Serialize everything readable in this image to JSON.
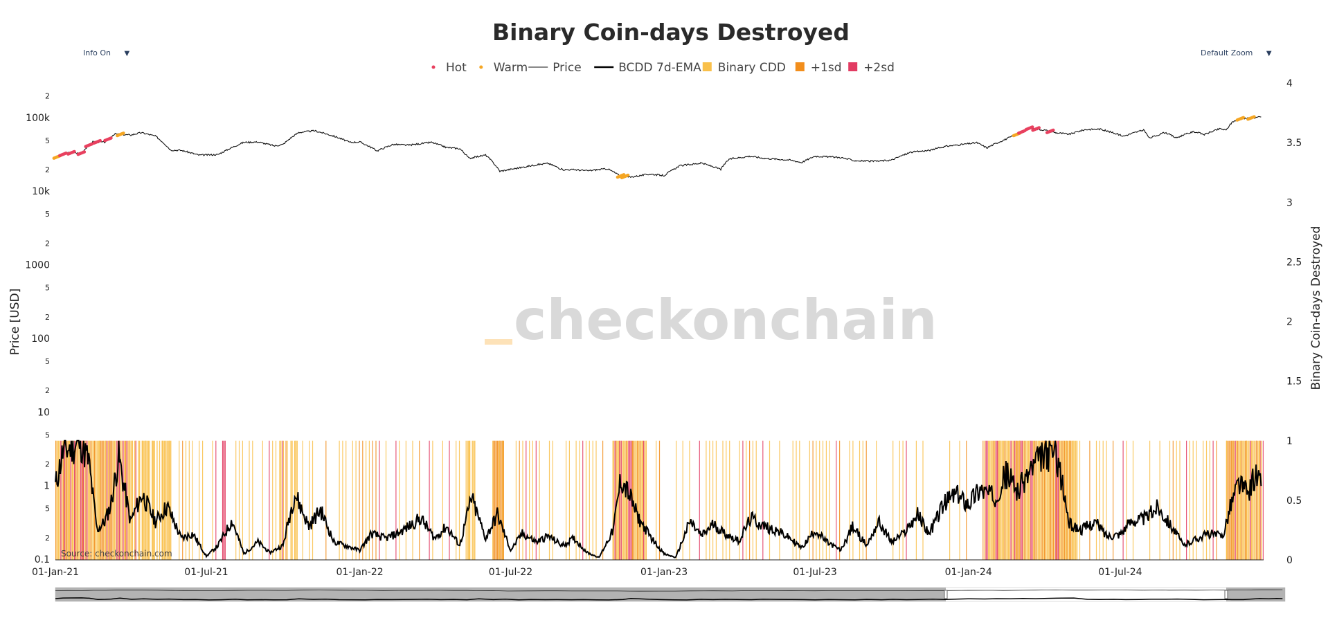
{
  "controls": {
    "info_toggle": "Info On",
    "zoom_select": "Default Zoom"
  },
  "watermark": "checkonchain",
  "source": "Source: checkonchain.com",
  "colors": {
    "hot": "#e8405f",
    "warm": "#f5a623",
    "binary_cdd": "#f9c04a",
    "sd1": "#f28e1c",
    "sd2": "#e23b62",
    "price": "#111111",
    "ema": "#000000"
  },
  "chart_data": {
    "type": "line",
    "title": "Binary Coin-days Destroyed",
    "legend": [
      {
        "label": "Hot",
        "kind": "marker",
        "color": "#e8405f"
      },
      {
        "label": "Warm",
        "kind": "marker",
        "color": "#f5a623"
      },
      {
        "label": "Price",
        "kind": "line-thin",
        "color": "#111111"
      },
      {
        "label": "BCDD 7d-EMA",
        "kind": "line-thick",
        "color": "#000000"
      },
      {
        "label": "Binary CDD",
        "kind": "box",
        "color": "#f9c04a"
      },
      {
        "label": "+1sd",
        "kind": "box",
        "color": "#f28e1c"
      },
      {
        "label": "+2sd",
        "kind": "box",
        "color": "#e23b62"
      }
    ],
    "legend_position": "top-center",
    "y_left": {
      "label": "Price [USD]",
      "scale": "log",
      "range": [
        0.1,
        300000
      ],
      "tick_labels": [
        {
          "v": 0.1,
          "t": "0.1"
        },
        {
          "v": 0.2,
          "t": "2"
        },
        {
          "v": 0.5,
          "t": "5"
        },
        {
          "v": 1,
          "t": "1"
        },
        {
          "v": 2,
          "t": "2"
        },
        {
          "v": 5,
          "t": "5"
        },
        {
          "v": 10,
          "t": "10"
        },
        {
          "v": 20,
          "t": "2"
        },
        {
          "v": 50,
          "t": "5"
        },
        {
          "v": 100,
          "t": "100"
        },
        {
          "v": 200,
          "t": "2"
        },
        {
          "v": 500,
          "t": "5"
        },
        {
          "v": 1000,
          "t": "1000"
        },
        {
          "v": 2000,
          "t": "2"
        },
        {
          "v": 5000,
          "t": "5"
        },
        {
          "v": 10000,
          "t": "10k"
        },
        {
          "v": 20000,
          "t": "2"
        },
        {
          "v": 50000,
          "t": "5"
        },
        {
          "v": 100000,
          "t": "100k"
        },
        {
          "v": 200000,
          "t": "2"
        }
      ]
    },
    "y_right": {
      "label": "Binary Coin-days Destroyed",
      "range": [
        0,
        4
      ],
      "ticks": [
        {
          "v": 0,
          "t": "0"
        },
        {
          "v": 0.5,
          "t": "0.5"
        },
        {
          "v": 1,
          "t": "1"
        },
        {
          "v": 1.5,
          "t": "1.5"
        },
        {
          "v": 2,
          "t": "2"
        },
        {
          "v": 2.5,
          "t": "2.5"
        },
        {
          "v": 3,
          "t": "3"
        },
        {
          "v": 3.5,
          "t": "3.5"
        },
        {
          "v": 4,
          "t": "4"
        }
      ]
    },
    "x_axis": {
      "range": [
        "2021-01-01",
        "2024-12-20"
      ],
      "ticks": [
        {
          "v": "2021-01-01",
          "t": "01-Jan-21"
        },
        {
          "v": "2021-07-01",
          "t": "01-Jul-21"
        },
        {
          "v": "2022-01-01",
          "t": "01-Jan-22"
        },
        {
          "v": "2022-07-01",
          "t": "01-Jul-22"
        },
        {
          "v": "2023-01-01",
          "t": "01-Jan-23"
        },
        {
          "v": "2023-07-01",
          "t": "01-Jul-23"
        },
        {
          "v": "2024-01-01",
          "t": "01-Jan-24"
        },
        {
          "v": "2024-07-01",
          "t": "01-Jul-24"
        }
      ]
    },
    "price_series": {
      "name": "Price",
      "x": [
        "2021-01-01",
        "2021-01-15",
        "2021-02-01",
        "2021-02-15",
        "2021-03-01",
        "2021-03-13",
        "2021-04-01",
        "2021-04-14",
        "2021-05-01",
        "2021-05-19",
        "2021-06-01",
        "2021-06-22",
        "2021-07-15",
        "2021-08-01",
        "2021-08-15",
        "2021-09-01",
        "2021-09-21",
        "2021-10-01",
        "2021-10-20",
        "2021-11-08",
        "2021-12-01",
        "2021-12-20",
        "2022-01-01",
        "2022-01-22",
        "2022-02-10",
        "2022-03-01",
        "2022-03-28",
        "2022-04-15",
        "2022-05-01",
        "2022-05-12",
        "2022-06-01",
        "2022-06-18",
        "2022-07-15",
        "2022-08-01",
        "2022-08-15",
        "2022-09-01",
        "2022-09-15",
        "2022-10-01",
        "2022-10-25",
        "2022-11-09",
        "2022-11-21",
        "2022-12-15",
        "2023-01-01",
        "2023-01-20",
        "2023-02-15",
        "2023-03-10",
        "2023-03-20",
        "2023-04-14",
        "2023-05-01",
        "2023-06-01",
        "2023-06-15",
        "2023-07-01",
        "2023-08-01",
        "2023-08-17",
        "2023-09-11",
        "2023-10-01",
        "2023-10-24",
        "2023-11-15",
        "2023-12-05",
        "2024-01-01",
        "2024-01-11",
        "2024-01-23",
        "2024-02-15",
        "2024-03-01",
        "2024-03-14",
        "2024-04-01",
        "2024-04-15",
        "2024-05-01",
        "2024-05-20",
        "2024-06-07",
        "2024-07-05",
        "2024-07-29",
        "2024-08-05",
        "2024-08-24",
        "2024-09-06",
        "2024-09-27",
        "2024-10-10",
        "2024-10-29",
        "2024-11-05",
        "2024-11-13",
        "2024-11-22",
        "2024-12-05",
        "2024-12-17"
      ],
      "y": [
        29000,
        34000,
        33500,
        48000,
        47000,
        61000,
        59000,
        63500,
        57000,
        37000,
        36500,
        31500,
        32000,
        40000,
        47000,
        47500,
        42000,
        44000,
        64000,
        67500,
        57000,
        47000,
        47500,
        36000,
        44000,
        43000,
        47000,
        40000,
        38500,
        28500,
        31500,
        19000,
        21500,
        23300,
        24300,
        20000,
        20000,
        19300,
        20600,
        16500,
        15800,
        17400,
        16600,
        22600,
        24500,
        20200,
        27800,
        30400,
        28500,
        27000,
        25000,
        30500,
        29200,
        26500,
        25900,
        27000,
        34500,
        36500,
        41500,
        45000,
        46500,
        39500,
        52000,
        61500,
        73000,
        69000,
        63500,
        60500,
        70000,
        71000,
        57000,
        69000,
        53500,
        64000,
        54000,
        65700,
        60000,
        72000,
        68500,
        90000,
        98000,
        100500,
        104000
      ]
    },
    "hot_warm_markers": [
      {
        "x": "2021-01-03",
        "type": "warm"
      },
      {
        "x": "2021-01-10",
        "type": "hot"
      },
      {
        "x": "2021-01-20",
        "type": "hot"
      },
      {
        "x": "2021-02-01",
        "type": "hot"
      },
      {
        "x": "2021-02-10",
        "type": "hot"
      },
      {
        "x": "2021-02-20",
        "type": "hot"
      },
      {
        "x": "2021-03-05",
        "type": "hot"
      },
      {
        "x": "2021-03-20",
        "type": "warm"
      },
      {
        "x": "2022-11-10",
        "type": "warm"
      },
      {
        "x": "2022-11-15",
        "type": "warm"
      },
      {
        "x": "2024-02-28",
        "type": "warm"
      },
      {
        "x": "2024-03-05",
        "type": "hot"
      },
      {
        "x": "2024-03-14",
        "type": "hot"
      },
      {
        "x": "2024-03-22",
        "type": "hot"
      },
      {
        "x": "2024-04-08",
        "type": "hot"
      },
      {
        "x": "2024-11-22",
        "type": "warm"
      },
      {
        "x": "2024-12-05",
        "type": "warm"
      }
    ],
    "bcdd_ema_series": {
      "name": "BCDD 7d-EMA",
      "x": [
        "2021-01-01",
        "2021-01-10",
        "2021-01-20",
        "2021-02-01",
        "2021-02-10",
        "2021-02-20",
        "2021-03-01",
        "2021-03-08",
        "2021-03-18",
        "2021-04-01",
        "2021-04-15",
        "2021-05-01",
        "2021-05-15",
        "2021-06-01",
        "2021-06-15",
        "2021-07-01",
        "2021-07-15",
        "2021-08-01",
        "2021-08-15",
        "2021-09-01",
        "2021-09-15",
        "2021-10-01",
        "2021-10-15",
        "2021-11-01",
        "2021-11-15",
        "2021-12-01",
        "2021-12-15",
        "2022-01-01",
        "2022-01-15",
        "2022-02-01",
        "2022-02-15",
        "2022-03-01",
        "2022-03-15",
        "2022-04-01",
        "2022-04-15",
        "2022-05-01",
        "2022-05-15",
        "2022-06-01",
        "2022-06-15",
        "2022-07-01",
        "2022-07-15",
        "2022-08-01",
        "2022-08-15",
        "2022-09-01",
        "2022-09-15",
        "2022-10-01",
        "2022-10-15",
        "2022-11-01",
        "2022-11-10",
        "2022-11-20",
        "2022-12-01",
        "2022-12-15",
        "2023-01-01",
        "2023-01-15",
        "2023-02-01",
        "2023-02-15",
        "2023-03-01",
        "2023-03-15",
        "2023-04-01",
        "2023-04-15",
        "2023-05-01",
        "2023-05-15",
        "2023-06-01",
        "2023-06-15",
        "2023-07-01",
        "2023-07-15",
        "2023-08-01",
        "2023-08-15",
        "2023-09-01",
        "2023-09-15",
        "2023-10-01",
        "2023-10-15",
        "2023-11-01",
        "2023-11-15",
        "2023-12-01",
        "2023-12-15",
        "2024-01-01",
        "2024-01-15",
        "2024-02-01",
        "2024-02-15",
        "2024-03-01",
        "2024-03-15",
        "2024-04-01",
        "2024-04-15",
        "2024-05-01",
        "2024-05-15",
        "2024-06-01",
        "2024-06-15",
        "2024-07-01",
        "2024-07-15",
        "2024-08-01",
        "2024-08-15",
        "2024-09-01",
        "2024-09-15",
        "2024-10-01",
        "2024-10-15",
        "2024-11-01",
        "2024-11-10",
        "2024-11-20",
        "2024-12-01",
        "2024-12-10",
        "2024-12-17"
      ],
      "y": [
        0.62,
        0.9,
        0.95,
        0.98,
        0.82,
        0.25,
        0.32,
        0.45,
        0.86,
        0.32,
        0.55,
        0.32,
        0.45,
        0.18,
        0.22,
        0.03,
        0.12,
        0.33,
        0.05,
        0.15,
        0.06,
        0.12,
        0.56,
        0.28,
        0.42,
        0.15,
        0.12,
        0.08,
        0.22,
        0.18,
        0.22,
        0.28,
        0.35,
        0.18,
        0.28,
        0.12,
        0.52,
        0.18,
        0.38,
        0.08,
        0.22,
        0.15,
        0.2,
        0.12,
        0.18,
        0.06,
        0.02,
        0.25,
        0.68,
        0.55,
        0.35,
        0.2,
        0.05,
        0.02,
        0.32,
        0.2,
        0.3,
        0.22,
        0.16,
        0.35,
        0.28,
        0.25,
        0.18,
        0.1,
        0.25,
        0.15,
        0.08,
        0.28,
        0.12,
        0.32,
        0.15,
        0.22,
        0.38,
        0.22,
        0.45,
        0.55,
        0.48,
        0.6,
        0.52,
        0.72,
        0.58,
        0.75,
        0.88,
        0.92,
        0.3,
        0.25,
        0.32,
        0.2,
        0.22,
        0.33,
        0.35,
        0.45,
        0.28,
        0.12,
        0.18,
        0.22,
        0.2,
        0.45,
        0.65,
        0.55,
        0.72,
        0.62
      ]
    },
    "binary_cdd_periods": [
      {
        "start": "2021-01-01",
        "end": "2021-03-31",
        "level": "mixed"
      },
      {
        "start": "2021-04-01",
        "end": "2021-05-20",
        "level": "binary"
      },
      {
        "start": "2021-07-20",
        "end": "2021-07-24",
        "level": "+2sd"
      },
      {
        "start": "2021-09-25",
        "end": "2021-10-20",
        "level": "binary"
      },
      {
        "start": "2022-05-08",
        "end": "2022-05-20",
        "level": "binary"
      },
      {
        "start": "2022-06-10",
        "end": "2022-06-22",
        "level": "+1sd"
      },
      {
        "start": "2022-11-01",
        "end": "2022-12-10",
        "level": "mixed"
      },
      {
        "start": "2024-01-20",
        "end": "2024-05-10",
        "level": "mixed"
      },
      {
        "start": "2024-11-05",
        "end": "2024-12-17",
        "level": "mixed"
      }
    ]
  }
}
